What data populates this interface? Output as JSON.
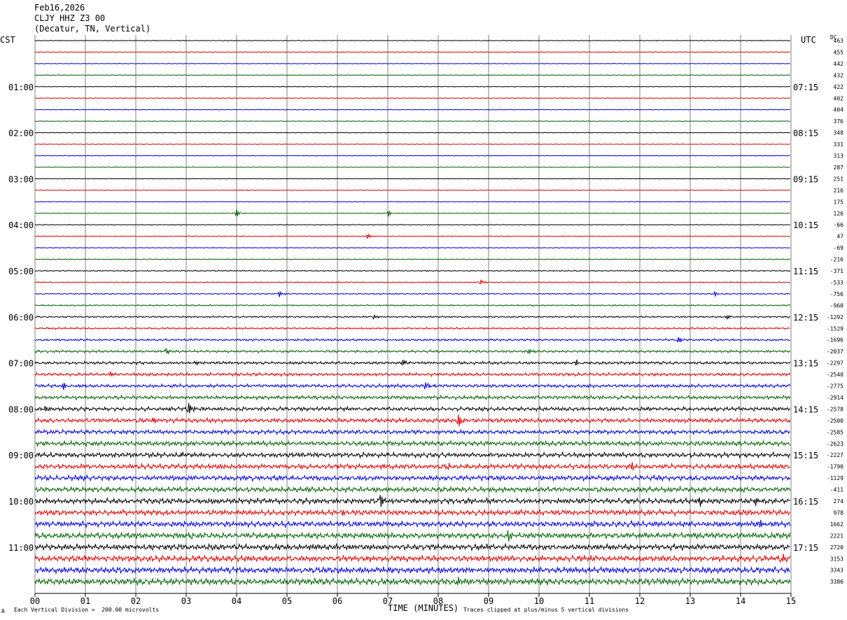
{
  "header": {
    "date": "Feb16,2026",
    "station": "CLJY HHZ Z3 00",
    "location": "(Decatur, TN, Vertical)"
  },
  "left_label": "CST",
  "right_label": "UTC",
  "dc_label": "DC",
  "footer": {
    "left_mark": "A",
    "division_note": "Each Vertical Division =  200.00 microvolts",
    "xlabel": "TIME (MINUTES)",
    "clip_note": "Traces clipped at plus/minus 5 vertical divisions"
  },
  "colors": {
    "trace": [
      "#000000",
      "#e00000",
      "#0000e0",
      "#006400"
    ],
    "grid": "#808080"
  },
  "chart_data": {
    "type": "line",
    "title": "CLJY HHZ Z3 00",
    "xlabel": "TIME (MINUTES)",
    "x_ticks": [
      "00",
      "01",
      "02",
      "03",
      "04",
      "05",
      "06",
      "07",
      "08",
      "09",
      "10",
      "11",
      "12",
      "13",
      "14",
      "15"
    ],
    "xlim": [
      0,
      15
    ],
    "trace_count": 48,
    "minutes_per_trace": 15,
    "cst_labels": [
      "01:00",
      "02:00",
      "03:00",
      "04:00",
      "05:00",
      "06:00",
      "07:00",
      "08:00",
      "09:00",
      "10:00",
      "11:00"
    ],
    "utc_labels": [
      "07:15",
      "08:15",
      "09:15",
      "10:15",
      "11:15",
      "12:15",
      "13:15",
      "14:15",
      "15:15",
      "16:15",
      "17:15"
    ],
    "dc_offsets": [
      "463",
      "455",
      "442",
      "432",
      "422",
      "402",
      "404",
      "376",
      "348",
      "331",
      "313",
      "287",
      "251",
      "216",
      "175",
      "126",
      "-66",
      "47",
      "-69",
      "-216",
      "-371",
      "-533",
      "-756",
      "-960",
      "-1292",
      "-1529",
      "-1696",
      "-2037",
      "-2297",
      "-2540",
      "-2775",
      "-2914",
      "-2578",
      "-2500",
      "-2585",
      "-2623",
      "-2227",
      "-1790",
      "-1129",
      "-411",
      "274",
      "978",
      "1662",
      "2221",
      "2720",
      "3153",
      "3343",
      "3386"
    ],
    "noise_level": [
      0.5,
      0.5,
      0.5,
      0.5,
      0.5,
      0.5,
      0.5,
      0.5,
      0.5,
      0.5,
      0.5,
      0.5,
      0.5,
      0.5,
      0.5,
      0.5,
      0.6,
      0.6,
      0.6,
      0.7,
      0.8,
      0.8,
      0.9,
      1.0,
      1.2,
      1.3,
      1.5,
      1.7,
      2.0,
      2.2,
      2.4,
      2.6,
      2.8,
      3.0,
      3.0,
      3.2,
      3.3,
      3.4,
      3.5,
      3.6,
      3.8,
      3.8,
      3.9,
      4.0,
      4.1,
      4.2,
      4.3,
      4.5
    ],
    "events": [
      {
        "trace": 15,
        "minute": 4.0,
        "amp": 6
      },
      {
        "trace": 15,
        "minute": 7.0,
        "amp": 6
      },
      {
        "trace": 17,
        "minute": 6.6,
        "amp": 4
      },
      {
        "trace": 21,
        "minute": 8.85,
        "amp": 5
      },
      {
        "trace": 22,
        "minute": 4.85,
        "amp": 6
      },
      {
        "trace": 22,
        "minute": 13.5,
        "amp": 4
      },
      {
        "trace": 24,
        "minute": 6.7,
        "amp": 5
      },
      {
        "trace": 24,
        "minute": 13.7,
        "amp": 7
      },
      {
        "trace": 26,
        "minute": 12.75,
        "amp": 7
      },
      {
        "trace": 27,
        "minute": 2.6,
        "amp": 6
      },
      {
        "trace": 27,
        "minute": 9.8,
        "amp": 7
      },
      {
        "trace": 28,
        "minute": 3.15,
        "amp": 6
      },
      {
        "trace": 28,
        "minute": 7.3,
        "amp": 6
      },
      {
        "trace": 28,
        "minute": 10.75,
        "amp": 6
      },
      {
        "trace": 29,
        "minute": 1.5,
        "amp": 5
      },
      {
        "trace": 30,
        "minute": 0.55,
        "amp": 6
      },
      {
        "trace": 30,
        "minute": 7.75,
        "amp": 7
      },
      {
        "trace": 32,
        "minute": 0.2,
        "amp": 8
      },
      {
        "trace": 32,
        "minute": 3.05,
        "amp": 12
      },
      {
        "trace": 33,
        "minute": 8.4,
        "amp": 16
      },
      {
        "trace": 33,
        "minute": 2.3,
        "amp": 7
      },
      {
        "trace": 36,
        "minute": 2.85,
        "amp": 7
      },
      {
        "trace": 37,
        "minute": 8.2,
        "amp": 10
      },
      {
        "trace": 37,
        "minute": 11.85,
        "amp": 6
      },
      {
        "trace": 40,
        "minute": 6.85,
        "amp": 16
      },
      {
        "trace": 40,
        "minute": 14.3,
        "amp": 7
      },
      {
        "trace": 40,
        "minute": 13.2,
        "amp": 8
      },
      {
        "trace": 41,
        "minute": 6.1,
        "amp": 7
      },
      {
        "trace": 42,
        "minute": 14.4,
        "amp": 8
      },
      {
        "trace": 43,
        "minute": 9.4,
        "amp": 8
      },
      {
        "trace": 43,
        "minute": 3.1,
        "amp": 6
      },
      {
        "trace": 43,
        "minute": 12.7,
        "amp": 7
      },
      {
        "trace": 45,
        "minute": 14.8,
        "amp": 7
      },
      {
        "trace": 47,
        "minute": 8.35,
        "amp": 8
      }
    ]
  }
}
